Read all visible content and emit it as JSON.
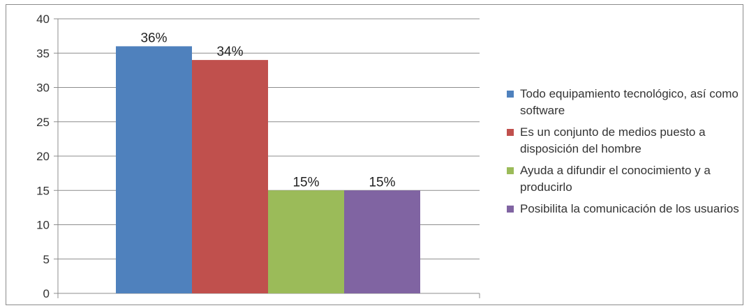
{
  "chart_data": {
    "type": "bar",
    "title": "",
    "xlabel": "",
    "ylabel": "",
    "ylim": [
      0,
      40
    ],
    "yticks": [
      0,
      5,
      10,
      15,
      20,
      25,
      30,
      35,
      40
    ],
    "grid": true,
    "legend_position": "right",
    "series": [
      {
        "name": "Todo equipamiento tecnológico, así como software",
        "value": 36,
        "label": "36%",
        "color": "#4f81bd"
      },
      {
        "name": "Es un conjunto de medios puesto a disposición del hombre",
        "value": 34,
        "label": "34%",
        "color": "#c0504d"
      },
      {
        "name": "Ayuda a difundir el conocimiento y a producirlo",
        "value": 15,
        "label": "15%",
        "color": "#9bbb59"
      },
      {
        "name": "Posibilita la comunicación de los usuarios",
        "value": 15,
        "label": "15%",
        "color": "#8064a2"
      }
    ]
  }
}
